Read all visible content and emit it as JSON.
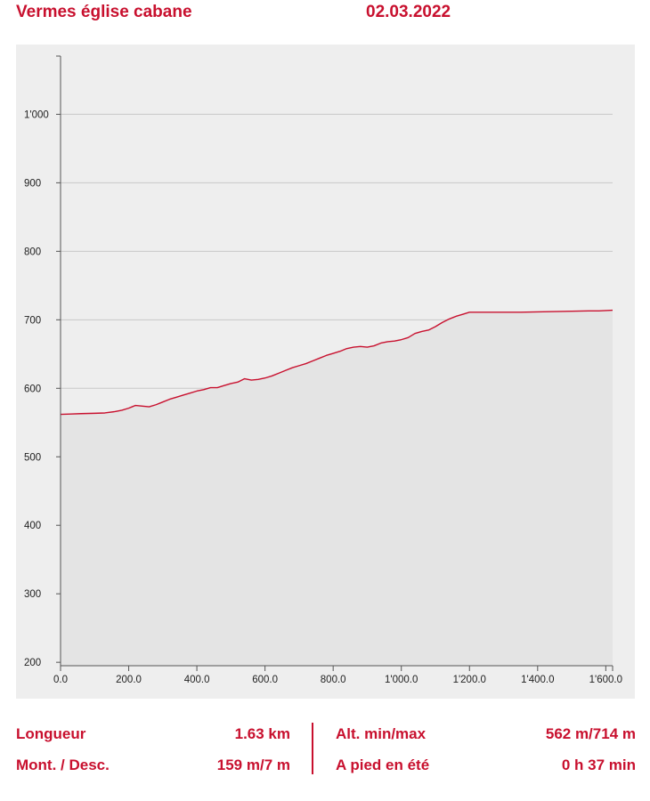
{
  "header": {
    "title": "Vermes église cabane",
    "date": "02.03.2022"
  },
  "chart_data": {
    "type": "area",
    "title": "",
    "xlabel": "",
    "ylabel": "",
    "xlim": [
      0,
      1620
    ],
    "ylim": [
      195,
      1085
    ],
    "x_ticks": [
      0,
      200,
      400,
      600,
      800,
      1000,
      1200,
      1400,
      1600
    ],
    "x_tick_labels": [
      "0.0",
      "200.0",
      "400.0",
      "600.0",
      "800.0",
      "1'000.0",
      "1'200.0",
      "1'400.0",
      "1'600.0"
    ],
    "y_ticks": [
      200,
      300,
      400,
      500,
      600,
      700,
      800,
      900,
      1000
    ],
    "y_tick_labels": [
      "200",
      "300",
      "400",
      "500",
      "600",
      "700",
      "800",
      "900",
      "1'000"
    ],
    "grid": true,
    "line_color": "#c8102e",
    "fill_color": "#e4e4e4",
    "x": [
      0,
      30,
      60,
      100,
      130,
      160,
      180,
      200,
      210,
      220,
      240,
      260,
      280,
      300,
      320,
      340,
      360,
      380,
      400,
      420,
      440,
      460,
      480,
      500,
      520,
      540,
      560,
      580,
      600,
      620,
      640,
      660,
      680,
      700,
      720,
      740,
      760,
      780,
      800,
      820,
      840,
      860,
      880,
      900,
      920,
      940,
      960,
      980,
      1000,
      1020,
      1040,
      1060,
      1080,
      1100,
      1120,
      1140,
      1160,
      1180,
      1200,
      1250,
      1300,
      1350,
      1400,
      1450,
      1500,
      1550,
      1580,
      1620
    ],
    "series": [
      {
        "values": [
          562,
          562.5,
          563,
          563.5,
          564,
          566,
          568,
          571,
          573,
          575,
          574,
          573,
          576,
          580,
          584,
          587,
          590,
          593,
          596,
          598,
          601,
          601,
          604,
          607,
          609,
          614,
          612,
          613,
          615,
          618,
          622,
          626,
          630,
          633,
          636,
          640,
          644,
          648,
          651,
          654,
          658,
          660,
          661,
          660,
          662,
          666,
          668,
          669,
          671,
          674,
          680,
          683,
          685,
          690,
          696,
          701,
          705,
          708,
          711,
          711,
          711,
          711,
          711.5,
          712,
          712.5,
          713,
          713,
          714
        ]
      }
    ]
  },
  "stats": {
    "length_label": "Longueur",
    "length_value": "1.63 km",
    "ascent_label": "Mont. / Desc.",
    "ascent_value": "159 m/7 m",
    "alt_label": "Alt. min/max",
    "alt_value": "562 m/714 m",
    "time_label": "A pied en été",
    "time_value": "0 h 37 min"
  }
}
